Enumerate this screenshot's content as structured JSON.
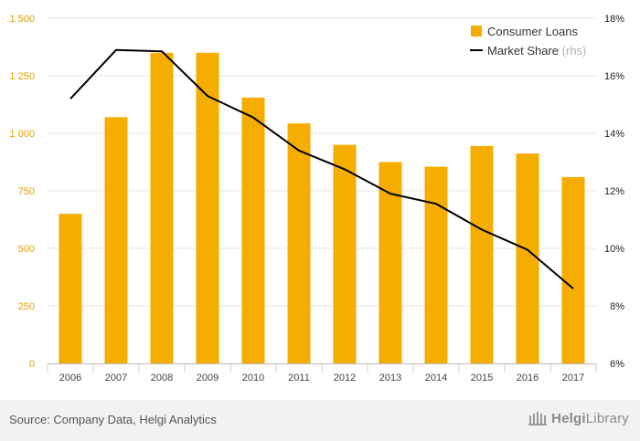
{
  "chart_data": {
    "type": "bar+line",
    "categories": [
      "2006",
      "2007",
      "2008",
      "2009",
      "2010",
      "2011",
      "2012",
      "2013",
      "2014",
      "2015",
      "2016",
      "2017"
    ],
    "series": [
      {
        "name": "Consumer Loans",
        "kind": "bar",
        "axis": "left",
        "color": "#f5ad00",
        "values": [
          650,
          1070,
          1350,
          1350,
          1155,
          1043,
          950,
          875,
          855,
          945,
          912,
          810
        ]
      },
      {
        "name": "Market Share",
        "name_suffix": "(rhs)",
        "kind": "line",
        "axis": "right",
        "color": "#000000",
        "values": [
          15.2,
          16.9,
          16.85,
          15.3,
          14.55,
          13.4,
          12.75,
          11.9,
          11.55,
          10.65,
          9.95,
          8.6
        ]
      }
    ],
    "y_left": {
      "min": 0,
      "max": 1500,
      "ticks": [
        0,
        250,
        500,
        750,
        1000,
        1250,
        1500
      ],
      "tick_labels": [
        "0",
        "250",
        "500",
        "750",
        "1 000",
        "1 250",
        "1 500"
      ],
      "label_color": "#e3a000"
    },
    "y_right": {
      "min": 6,
      "max": 18,
      "ticks": [
        6,
        8,
        10,
        12,
        14,
        16,
        18
      ],
      "tick_labels": [
        "6%",
        "8%",
        "10%",
        "12%",
        "14%",
        "16%",
        "18%"
      ]
    },
    "grid": true,
    "legend_position": "top-right"
  },
  "footer": {
    "source": "Source: Company Data, Helgi Analytics",
    "brand_prefix": "Helgi",
    "brand_suffix": "Library"
  },
  "icons": {
    "brand_logo": "library-building-icon"
  }
}
